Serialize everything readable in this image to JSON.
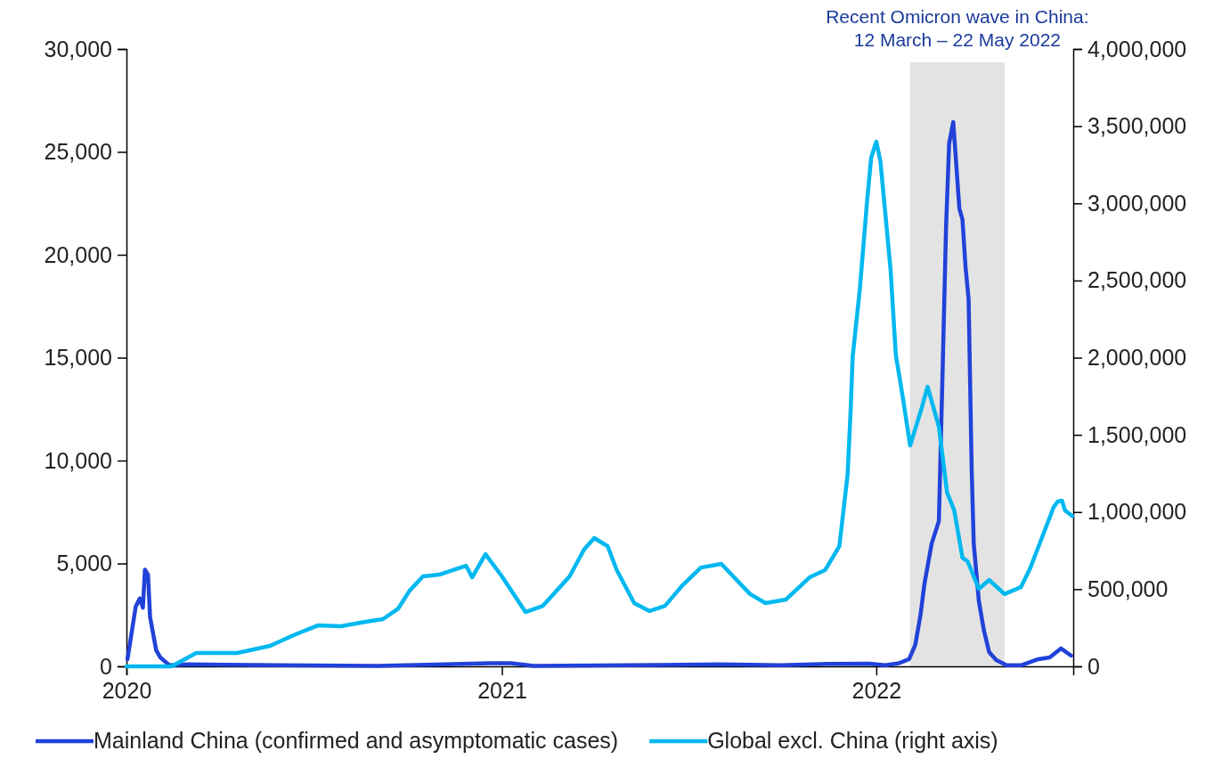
{
  "chart_data": {
    "type": "line",
    "xlim": [
      "2020-01-01",
      "2022-07-12"
    ],
    "xticks": [
      {
        "value": "2020-01-01",
        "label": "2020"
      },
      {
        "value": "2021-01-01",
        "label": "2021"
      },
      {
        "value": "2022-01-01",
        "label": "2022"
      }
    ],
    "ylim": [
      0,
      30000
    ],
    "yticks": [
      {
        "value": 0,
        "label": "0"
      },
      {
        "value": 5000,
        "label": "5,000"
      },
      {
        "value": 10000,
        "label": "10,000"
      },
      {
        "value": 15000,
        "label": "15,000"
      },
      {
        "value": 20000,
        "label": "20,000"
      },
      {
        "value": 25000,
        "label": "25,000"
      },
      {
        "value": 30000,
        "label": "30,000"
      }
    ],
    "y2lim": [
      0,
      4000000
    ],
    "y2ticks": [
      {
        "value": 0,
        "label": "0"
      },
      {
        "value": 500000,
        "label": "500,000"
      },
      {
        "value": 1000000,
        "label": "1,000,000"
      },
      {
        "value": 1500000,
        "label": "1,500,000"
      },
      {
        "value": 2000000,
        "label": "2,000,000"
      },
      {
        "value": 2500000,
        "label": "2,500,000"
      },
      {
        "value": 3000000,
        "label": "3,000,000"
      },
      {
        "value": 3500000,
        "label": "3,500,000"
      },
      {
        "value": 4000000,
        "label": "4,000,000"
      }
    ],
    "grid": false,
    "legend": "bottom",
    "line_style": "solid",
    "marker": "none",
    "bands": [
      {
        "axis": "x",
        "from": "2022-02-03",
        "to": "2022-05-06",
        "color": "#e3e3e3",
        "label": "Recent Omicron wave in China:\n12 March – 22 May 2022"
      }
    ],
    "series": [
      {
        "name": "Mainland China (confirmed and asymptomatic cases)",
        "color": "#2142d9",
        "axis": "y",
        "x": [
          "2020-01-02",
          "2020-01-10",
          "2020-01-14",
          "2020-01-17",
          "2020-01-19",
          "2020-01-22",
          "2020-01-24",
          "2020-01-30",
          "2020-02-03",
          "2020-02-12",
          "2020-03-01",
          "2020-06-01",
          "2020-09-01",
          "2020-12-20",
          "2021-01-10",
          "2021-02-01",
          "2021-06-01",
          "2021-08-01",
          "2021-10-01",
          "2021-11-15",
          "2021-12-25",
          "2022-01-10",
          "2022-01-23",
          "2022-02-02",
          "2022-02-08",
          "2022-02-13",
          "2022-02-17",
          "2022-02-24",
          "2022-03-03",
          "2022-03-06",
          "2022-03-10",
          "2022-03-13",
          "2022-03-17",
          "2022-03-19",
          "2022-03-23",
          "2022-03-26",
          "2022-03-29",
          "2022-04-01",
          "2022-04-04",
          "2022-04-06",
          "2022-04-11",
          "2022-04-16",
          "2022-04-21",
          "2022-04-28",
          "2022-05-08",
          "2022-05-22",
          "2022-06-08",
          "2022-06-19",
          "2022-06-30",
          "2022-07-10"
        ],
        "values": [
          350,
          2900,
          3300,
          2850,
          4700,
          4450,
          2400,
          780,
          430,
          50,
          100,
          50,
          20,
          150,
          150,
          20,
          60,
          100,
          50,
          120,
          130,
          50,
          150,
          350,
          1040,
          2470,
          4030,
          5970,
          7060,
          13050,
          21340,
          25400,
          26450,
          25060,
          22250,
          21710,
          19410,
          17840,
          9520,
          5970,
          3160,
          1730,
          690,
          300,
          50,
          50,
          350,
          430,
          870,
          520
        ]
      },
      {
        "name": "Global excl. China (right axis)",
        "color": "#00b8f0",
        "axis": "y2",
        "x": [
          "2020-01-01",
          "2020-02-14",
          "2020-03-09",
          "2020-04-18",
          "2020-05-20",
          "2020-06-12",
          "2020-07-06",
          "2020-07-28",
          "2020-08-21",
          "2020-09-07",
          "2020-09-22",
          "2020-10-03",
          "2020-10-16",
          "2020-11-01",
          "2020-11-27",
          "2020-12-03",
          "2020-12-16",
          "2021-01-01",
          "2021-01-24",
          "2021-02-10",
          "2021-03-08",
          "2021-03-22",
          "2021-04-01",
          "2021-04-14",
          "2021-04-23",
          "2021-05-10",
          "2021-05-25",
          "2021-06-09",
          "2021-06-26",
          "2021-07-14",
          "2021-08-03",
          "2021-08-17",
          "2021-08-31",
          "2021-09-15",
          "2021-10-05",
          "2021-10-28",
          "2021-11-12",
          "2021-11-26",
          "2021-12-04",
          "2021-12-07",
          "2021-12-09",
          "2021-12-16",
          "2021-12-23",
          "2021-12-27",
          "2022-01-01",
          "2022-01-05",
          "2022-01-10",
          "2022-01-15",
          "2022-01-20",
          "2022-01-27",
          "2022-02-03",
          "2022-02-14",
          "2022-02-20",
          "2022-03-03",
          "2022-03-11",
          "2022-03-18",
          "2022-03-26",
          "2022-03-31",
          "2022-04-11",
          "2022-04-21",
          "2022-05-06",
          "2022-05-22",
          "2022-05-31",
          "2022-06-12",
          "2022-06-23",
          "2022-06-27",
          "2022-07-01",
          "2022-07-04",
          "2022-07-11"
        ],
        "values": [
          0,
          0,
          87000,
          87000,
          133000,
          202000,
          266000,
          260000,
          289000,
          306000,
          375000,
          490000,
          583000,
          594000,
          652000,
          577000,
          727000,
          583000,
          352000,
          392000,
          583000,
          756000,
          831000,
          779000,
          623000,
          410000,
          358000,
          392000,
          525000,
          640000,
          664000,
          566000,
          468000,
          410000,
          433000,
          577000,
          623000,
          779000,
          1241000,
          1662000,
          2009000,
          2447000,
          3013000,
          3296000,
          3400000,
          3273000,
          2921000,
          2563000,
          2020000,
          1737000,
          1431000,
          1668000,
          1812000,
          1553000,
          1126000,
          1010000,
          704000,
          681000,
          502000,
          560000,
          468000,
          514000,
          635000,
          843000,
          1033000,
          1068000,
          1074000,
          1010000,
          975000
        ]
      }
    ]
  }
}
